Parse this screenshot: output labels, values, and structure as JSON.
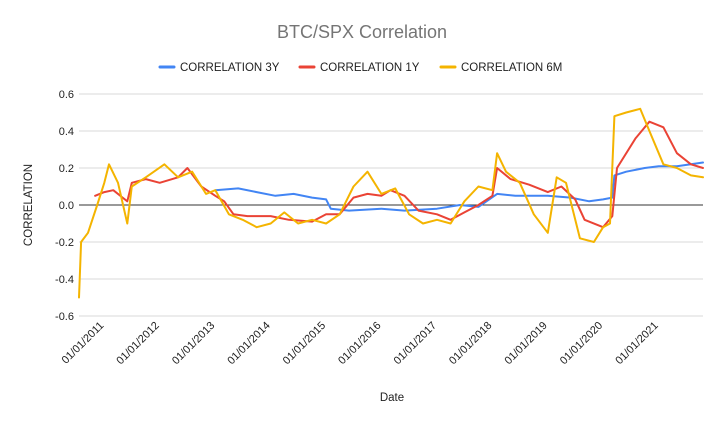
{
  "chart_data": {
    "type": "line",
    "title": "BTC/SPX Correlation",
    "xlabel": "Date",
    "ylabel": "CORRELATION",
    "ylim": [
      -0.6,
      0.6
    ],
    "xlim": [
      "2010-07-18",
      "2021-10-20"
    ],
    "y_ticks": [
      "0.6",
      "0.4",
      "0.2",
      "0.0",
      "-0.2",
      "-0.4",
      "-0.6"
    ],
    "x_ticks": [
      "01/01/2011",
      "01/01/2012",
      "01/01/2013",
      "01/01/2014",
      "01/01/2015",
      "01/01/2016",
      "01/01/2017",
      "01/01/2018",
      "01/01/2019",
      "01/01/2020",
      "01/01/2021"
    ],
    "legend_position": "top",
    "grid": true,
    "series": [
      {
        "name": "CORRELATION 3Y",
        "color": "#4285F4",
        "points": [
          [
            "2013-01-01",
            0.08
          ],
          [
            "2013-06-01",
            0.09
          ],
          [
            "2013-10-01",
            0.07
          ],
          [
            "2014-02-01",
            0.05
          ],
          [
            "2014-06-01",
            0.06
          ],
          [
            "2014-10-01",
            0.04
          ],
          [
            "2015-01-01",
            0.03
          ],
          [
            "2015-02-01",
            -0.02
          ],
          [
            "2015-06-01",
            -0.03
          ],
          [
            "2016-01-01",
            -0.02
          ],
          [
            "2016-06-01",
            -0.03
          ],
          [
            "2017-01-01",
            -0.02
          ],
          [
            "2017-06-01",
            0.0
          ],
          [
            "2017-10-01",
            -0.01
          ],
          [
            "2018-02-01",
            0.06
          ],
          [
            "2018-06-01",
            0.05
          ],
          [
            "2019-01-01",
            0.05
          ],
          [
            "2019-06-01",
            0.04
          ],
          [
            "2019-10-01",
            0.02
          ],
          [
            "2020-01-01",
            0.03
          ],
          [
            "2020-03-01",
            0.04
          ],
          [
            "2020-03-15",
            0.16
          ],
          [
            "2020-06-01",
            0.18
          ],
          [
            "2020-10-01",
            0.2
          ],
          [
            "2021-01-01",
            0.21
          ],
          [
            "2021-05-01",
            0.21
          ],
          [
            "2021-10-20",
            0.23
          ]
        ]
      },
      {
        "name": "CORRELATION 1Y",
        "color": "#EA4335",
        "points": [
          [
            "2010-11-01",
            0.05
          ],
          [
            "2011-01-01",
            0.07
          ],
          [
            "2011-03-01",
            0.08
          ],
          [
            "2011-05-01",
            0.04
          ],
          [
            "2011-06-01",
            0.02
          ],
          [
            "2011-07-01",
            0.12
          ],
          [
            "2011-10-01",
            0.14
          ],
          [
            "2012-01-01",
            0.12
          ],
          [
            "2012-05-01",
            0.15
          ],
          [
            "2012-07-01",
            0.2
          ],
          [
            "2012-10-01",
            0.1
          ],
          [
            "2013-01-01",
            0.05
          ],
          [
            "2013-03-01",
            0.02
          ],
          [
            "2013-05-01",
            -0.05
          ],
          [
            "2013-08-01",
            -0.06
          ],
          [
            "2014-01-01",
            -0.06
          ],
          [
            "2014-05-01",
            -0.08
          ],
          [
            "2014-10-01",
            -0.09
          ],
          [
            "2015-01-01",
            -0.05
          ],
          [
            "2015-04-01",
            -0.05
          ],
          [
            "2015-07-01",
            0.04
          ],
          [
            "2015-10-01",
            0.06
          ],
          [
            "2016-01-01",
            0.05
          ],
          [
            "2016-03-01",
            0.08
          ],
          [
            "2016-06-01",
            0.05
          ],
          [
            "2016-09-01",
            -0.03
          ],
          [
            "2017-01-01",
            -0.05
          ],
          [
            "2017-04-01",
            -0.08
          ],
          [
            "2017-07-01",
            -0.04
          ],
          [
            "2017-10-01",
            0.0
          ],
          [
            "2018-01-01",
            0.05
          ],
          [
            "2018-02-01",
            0.2
          ],
          [
            "2018-05-01",
            0.14
          ],
          [
            "2018-09-01",
            0.11
          ],
          [
            "2019-01-01",
            0.07
          ],
          [
            "2019-04-01",
            0.1
          ],
          [
            "2019-07-01",
            0.03
          ],
          [
            "2019-09-01",
            -0.08
          ],
          [
            "2020-01-01",
            -0.12
          ],
          [
            "2020-03-01",
            -0.06
          ],
          [
            "2020-04-01",
            0.2
          ],
          [
            "2020-08-01",
            0.36
          ],
          [
            "2020-11-01",
            0.45
          ],
          [
            "2021-02-01",
            0.42
          ],
          [
            "2021-05-01",
            0.28
          ],
          [
            "2021-08-01",
            0.22
          ],
          [
            "2021-10-20",
            0.2
          ]
        ]
      },
      {
        "name": "CORRELATION 6M",
        "color": "#F4B400",
        "points": [
          [
            "2010-07-18",
            -0.5
          ],
          [
            "2010-08-01",
            -0.2
          ],
          [
            "2010-09-15",
            -0.15
          ],
          [
            "2010-11-15",
            0.0
          ],
          [
            "2011-01-01",
            0.12
          ],
          [
            "2011-02-01",
            0.22
          ],
          [
            "2011-04-01",
            0.12
          ],
          [
            "2011-06-01",
            -0.1
          ],
          [
            "2011-07-01",
            0.1
          ],
          [
            "2011-10-01",
            0.15
          ],
          [
            "2012-02-01",
            0.22
          ],
          [
            "2012-05-01",
            0.15
          ],
          [
            "2012-08-01",
            0.18
          ],
          [
            "2012-11-01",
            0.06
          ],
          [
            "2013-01-01",
            0.08
          ],
          [
            "2013-04-01",
            -0.05
          ],
          [
            "2013-07-01",
            -0.08
          ],
          [
            "2013-10-01",
            -0.12
          ],
          [
            "2014-01-01",
            -0.1
          ],
          [
            "2014-04-01",
            -0.04
          ],
          [
            "2014-07-01",
            -0.1
          ],
          [
            "2014-10-01",
            -0.08
          ],
          [
            "2015-01-01",
            -0.1
          ],
          [
            "2015-04-01",
            -0.05
          ],
          [
            "2015-07-01",
            0.1
          ],
          [
            "2015-10-01",
            0.18
          ],
          [
            "2016-01-01",
            0.06
          ],
          [
            "2016-04-01",
            0.09
          ],
          [
            "2016-07-01",
            -0.05
          ],
          [
            "2016-10-01",
            -0.1
          ],
          [
            "2017-01-01",
            -0.08
          ],
          [
            "2017-04-01",
            -0.1
          ],
          [
            "2017-07-01",
            0.02
          ],
          [
            "2017-10-01",
            0.1
          ],
          [
            "2018-01-01",
            0.08
          ],
          [
            "2018-02-01",
            0.28
          ],
          [
            "2018-04-01",
            0.18
          ],
          [
            "2018-07-01",
            0.12
          ],
          [
            "2018-10-01",
            -0.05
          ],
          [
            "2019-01-01",
            -0.15
          ],
          [
            "2019-03-01",
            0.15
          ],
          [
            "2019-05-01",
            0.12
          ],
          [
            "2019-08-01",
            -0.18
          ],
          [
            "2019-11-01",
            -0.2
          ],
          [
            "2020-01-01",
            -0.12
          ],
          [
            "2020-02-15",
            -0.1
          ],
          [
            "2020-03-15",
            0.48
          ],
          [
            "2020-06-01",
            0.5
          ],
          [
            "2020-09-01",
            0.52
          ],
          [
            "2020-11-01",
            0.4
          ],
          [
            "2021-02-01",
            0.22
          ],
          [
            "2021-05-01",
            0.2
          ],
          [
            "2021-08-01",
            0.16
          ],
          [
            "2021-10-20",
            0.15
          ]
        ]
      }
    ]
  }
}
